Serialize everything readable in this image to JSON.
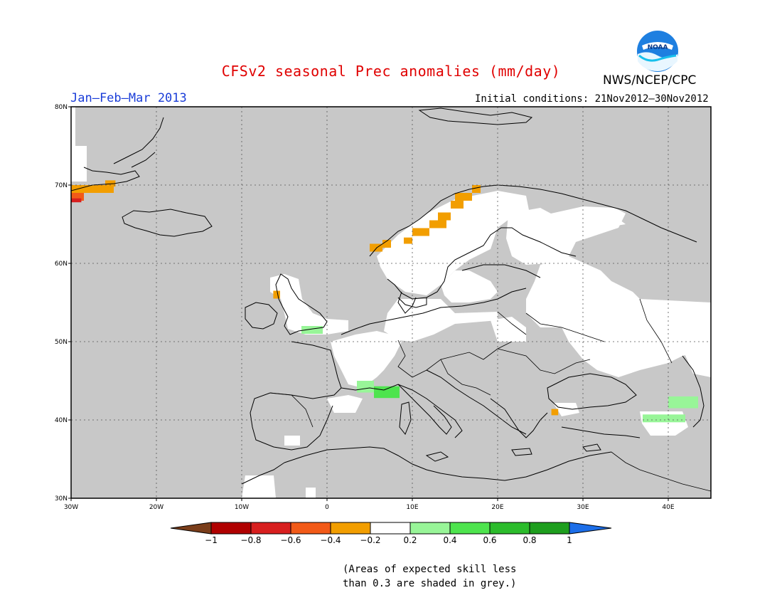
{
  "title": "CFSv2 seasonal Prec anomalies (mm/day)",
  "season": "Jan–Feb–Mar 2013",
  "initial_conditions": "Initial conditions: 21Nov2012–30Nov2012",
  "agency": "NWS/NCEP/CPC",
  "logo": {
    "text": "NOAA",
    "icon": "noaa-logo-icon"
  },
  "map": {
    "lon_range": [
      -30,
      45
    ],
    "lat_range": [
      30,
      80
    ],
    "lon_ticks": [
      {
        "value": -30,
        "label": "30W"
      },
      {
        "value": -20,
        "label": "20W"
      },
      {
        "value": -10,
        "label": "10W"
      },
      {
        "value": 0,
        "label": "0"
      },
      {
        "value": 10,
        "label": "10E"
      },
      {
        "value": 20,
        "label": "20E"
      },
      {
        "value": 30,
        "label": "30E"
      },
      {
        "value": 40,
        "label": "40E"
      }
    ],
    "lat_ticks": [
      {
        "value": 30,
        "label": "30N"
      },
      {
        "value": 40,
        "label": "40N"
      },
      {
        "value": 50,
        "label": "50N"
      },
      {
        "value": 60,
        "label": "60N"
      },
      {
        "value": 70,
        "label": "70N"
      },
      {
        "value": 80,
        "label": "80N"
      }
    ],
    "colors": {
      "low_skill_grey": "#c8c8c8",
      "neutral": "#ffffff",
      "coast": "#000000"
    },
    "anomaly_cells": [
      {
        "lon": -30,
        "lat": 69,
        "w": 5,
        "h": 1,
        "value": -0.3
      },
      {
        "lon": -30,
        "lat": 68,
        "w": 1.5,
        "h": 1,
        "value": -0.5
      },
      {
        "lon": -30,
        "lat": 67.8,
        "w": 1.2,
        "h": 0.5,
        "value": -0.7
      },
      {
        "lon": -26,
        "lat": 69.8,
        "w": 1.2,
        "h": 0.8,
        "value": -0.3
      },
      {
        "lon": -6.3,
        "lat": 55.5,
        "w": 0.8,
        "h": 1,
        "value": -0.3
      },
      {
        "lon": 5,
        "lat": 61.5,
        "w": 1.5,
        "h": 1,
        "value": -0.3
      },
      {
        "lon": 6.5,
        "lat": 62,
        "w": 1,
        "h": 1,
        "value": -0.3
      },
      {
        "lon": 9,
        "lat": 62.5,
        "w": 1,
        "h": 0.8,
        "value": -0.3
      },
      {
        "lon": 10,
        "lat": 63.5,
        "w": 2,
        "h": 1,
        "value": -0.3
      },
      {
        "lon": 12,
        "lat": 64.5,
        "w": 2,
        "h": 1,
        "value": -0.3
      },
      {
        "lon": 13,
        "lat": 65.5,
        "w": 1.5,
        "h": 1,
        "value": -0.3
      },
      {
        "lon": 14.5,
        "lat": 67,
        "w": 1.5,
        "h": 1,
        "value": -0.3
      },
      {
        "lon": 15,
        "lat": 68,
        "w": 2,
        "h": 1,
        "value": -0.3
      },
      {
        "lon": 17,
        "lat": 69,
        "w": 1,
        "h": 1,
        "value": -0.3
      },
      {
        "lon": 26.3,
        "lat": 40.6,
        "w": 0.8,
        "h": 0.8,
        "value": -0.3
      },
      {
        "lon": -3,
        "lat": 51,
        "w": 2.5,
        "h": 1,
        "value": 0.3
      },
      {
        "lon": 3.5,
        "lat": 43.5,
        "w": 2,
        "h": 1.5,
        "value": 0.3
      },
      {
        "lon": 5.5,
        "lat": 42.8,
        "w": 3,
        "h": 1.5,
        "value": 0.5
      },
      {
        "lon": 40,
        "lat": 41.5,
        "w": 3.5,
        "h": 1.5,
        "value": 0.3
      },
      {
        "lon": 37,
        "lat": 39.7,
        "w": 5,
        "h": 1,
        "value": 0.3
      }
    ]
  },
  "colorbar": {
    "colors": [
      "#7a3d1a",
      "#b00000",
      "#d81f1f",
      "#f25a18",
      "#f29e00",
      "#ffffff",
      "#98f598",
      "#4ee44e",
      "#2cbc2c",
      "#1e9e1e",
      "#1c6ee8"
    ],
    "labels": [
      "−1",
      "−0.8",
      "−0.6",
      "−0.4",
      "−0.2",
      "0.2",
      "0.4",
      "0.6",
      "0.8",
      "1"
    ]
  },
  "note_line1": "(Areas of expected skill less",
  "note_line2": "than 0.3 are shaded in grey.)"
}
